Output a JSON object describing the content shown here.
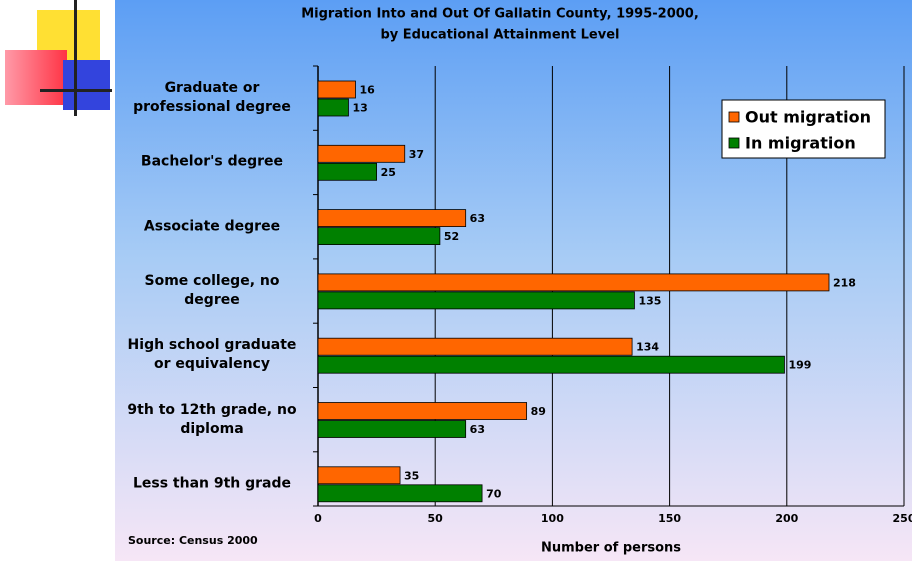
{
  "chart_data": {
    "type": "bar",
    "orientation": "horizontal",
    "title": "Migration Into and Out Of Gallatin County, 1995-2000,",
    "subtitle": "by Educational Attainment Level",
    "categories": [
      "Graduate or professional degree",
      "Bachelor's degree",
      "Associate degree",
      "Some college, no degree",
      "High school graduate or equivalency",
      "9th to 12th grade, no diploma",
      "Less than 9th grade"
    ],
    "series": [
      {
        "name": "Out migration",
        "color": "#ff6600",
        "values": [
          16,
          37,
          63,
          218,
          134,
          89,
          35
        ]
      },
      {
        "name": "In migration",
        "color": "#008000",
        "values": [
          13,
          25,
          52,
          135,
          199,
          63,
          70
        ]
      }
    ],
    "xlabel": "Number of persons",
    "xlim": [
      0,
      250
    ],
    "xticks": [
      0,
      50,
      100,
      150,
      200,
      250
    ],
    "grid": true,
    "legend": "upper right",
    "source": "Source: Census 2000"
  }
}
